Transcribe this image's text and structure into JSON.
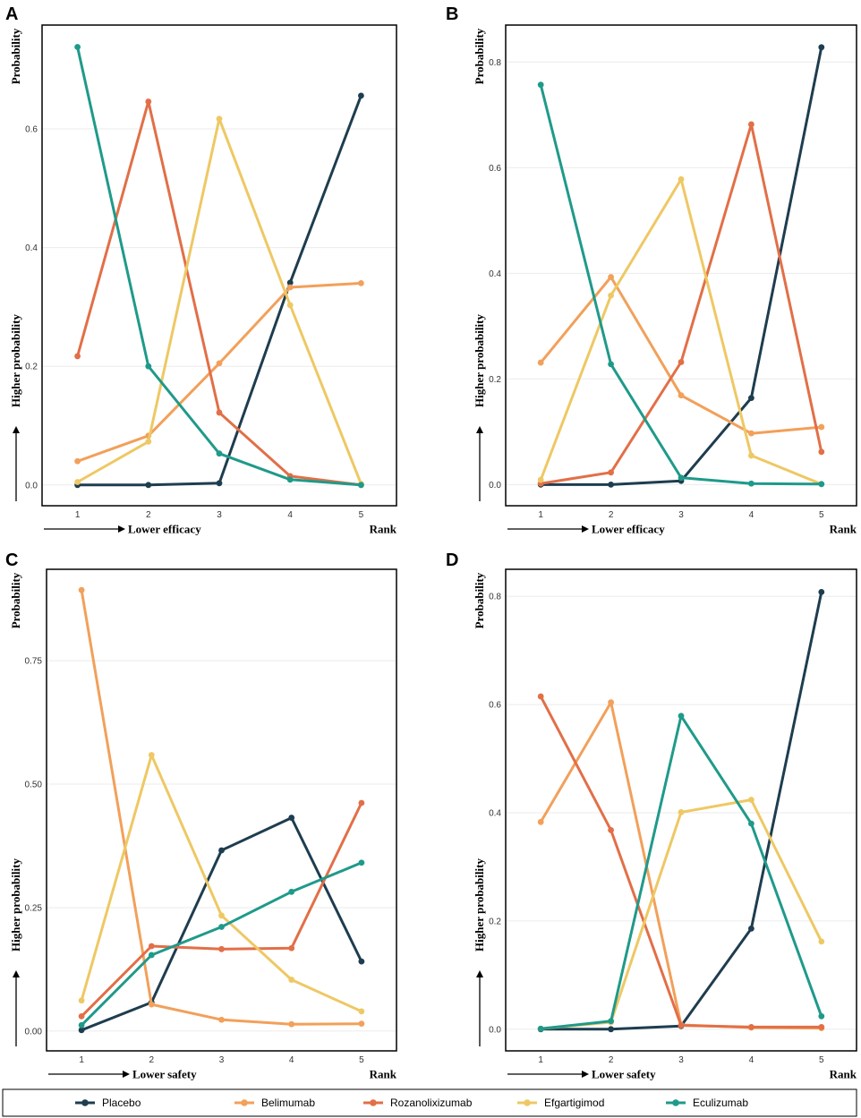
{
  "chart_data": [
    {
      "panel": "A",
      "type": "line",
      "xlabel": "Lower efficacy",
      "x_rank_label": "Rank",
      "ylabel_top": "Probability",
      "ylabel_bottom": "Higher probability",
      "x": [
        1,
        2,
        3,
        4,
        5
      ],
      "xlim": [
        0.5,
        5.5
      ],
      "ylim": [
        -0.035,
        0.775
      ],
      "yticks": [
        0.0,
        0.2,
        0.4,
        0.6
      ],
      "ytick_labels": [
        "0.0",
        "0.2",
        "0.4",
        "0.6"
      ],
      "series": [
        {
          "name": "Placebo",
          "values": [
            0.0,
            0.0,
            0.003,
            0.341,
            0.656
          ]
        },
        {
          "name": "Belimumab",
          "values": [
            0.04,
            0.083,
            0.205,
            0.333,
            0.34
          ]
        },
        {
          "name": "Rozanolixizumab",
          "values": [
            0.217,
            0.646,
            0.122,
            0.015,
            0.0
          ]
        },
        {
          "name": "Efgartigimod",
          "values": [
            0.005,
            0.073,
            0.617,
            0.303,
            0.002
          ]
        },
        {
          "name": "Eculizumab",
          "values": [
            0.738,
            0.2,
            0.053,
            0.009,
            0.0
          ]
        }
      ]
    },
    {
      "panel": "B",
      "type": "line",
      "xlabel": "Lower efficacy",
      "x_rank_label": "Rank",
      "ylabel_top": "Probability",
      "ylabel_bottom": "Higher probability",
      "x": [
        1,
        2,
        3,
        4,
        5
      ],
      "xlim": [
        0.5,
        5.5
      ],
      "ylim": [
        -0.04,
        0.87
      ],
      "yticks": [
        0.0,
        0.2,
        0.4,
        0.6,
        0.8
      ],
      "ytick_labels": [
        "0.0",
        "0.2",
        "0.4",
        "0.6",
        "0.8"
      ],
      "series": [
        {
          "name": "Placebo",
          "values": [
            0.0,
            0.0,
            0.007,
            0.164,
            0.828
          ]
        },
        {
          "name": "Belimumab",
          "values": [
            0.231,
            0.393,
            0.169,
            0.097,
            0.109
          ]
        },
        {
          "name": "Rozanolixizumab",
          "values": [
            0.002,
            0.023,
            0.232,
            0.682,
            0.062
          ]
        },
        {
          "name": "Efgartigimod",
          "values": [
            0.009,
            0.358,
            0.578,
            0.055,
            0.001
          ]
        },
        {
          "name": "Eculizumab",
          "values": [
            0.757,
            0.228,
            0.013,
            0.002,
            0.001
          ]
        }
      ]
    },
    {
      "panel": "C",
      "type": "line",
      "xlabel": "Lower safety",
      "x_rank_label": "Rank",
      "ylabel_top": "Probability",
      "ylabel_bottom": "Higher probability",
      "x": [
        1,
        2,
        3,
        4,
        5
      ],
      "xlim": [
        0.5,
        5.5
      ],
      "ylim": [
        -0.04,
        0.935
      ],
      "yticks": [
        0.0,
        0.25,
        0.5,
        0.75
      ],
      "ytick_labels": [
        "0.00",
        "0.25",
        "0.50",
        "0.75"
      ],
      "series": [
        {
          "name": "Placebo",
          "values": [
            0.002,
            0.058,
            0.366,
            0.432,
            0.141
          ]
        },
        {
          "name": "Belimumab",
          "values": [
            0.893,
            0.054,
            0.023,
            0.014,
            0.015
          ]
        },
        {
          "name": "Rozanolixizumab",
          "values": [
            0.03,
            0.172,
            0.166,
            0.168,
            0.462
          ]
        },
        {
          "name": "Efgartigimod",
          "values": [
            0.062,
            0.559,
            0.234,
            0.104,
            0.04
          ]
        },
        {
          "name": "Eculizumab",
          "values": [
            0.012,
            0.154,
            0.211,
            0.282,
            0.341
          ]
        }
      ]
    },
    {
      "panel": "D",
      "type": "line",
      "xlabel": "Lower safety",
      "x_rank_label": "Rank",
      "ylabel_top": "Probability",
      "ylabel_bottom": "Higher probability",
      "x": [
        1,
        2,
        3,
        4,
        5
      ],
      "xlim": [
        0.5,
        5.5
      ],
      "ylim": [
        -0.04,
        0.85
      ],
      "yticks": [
        0.0,
        0.2,
        0.4,
        0.6,
        0.8
      ],
      "ytick_labels": [
        "0.0",
        "0.2",
        "0.4",
        "0.6",
        "0.8"
      ],
      "series": [
        {
          "name": "Placebo",
          "values": [
            0.0,
            0.0,
            0.006,
            0.186,
            0.808
          ]
        },
        {
          "name": "Belimumab",
          "values": [
            0.383,
            0.604,
            0.008,
            0.003,
            0.002
          ]
        },
        {
          "name": "Rozanolixizumab",
          "values": [
            0.615,
            0.368,
            0.007,
            0.004,
            0.004
          ]
        },
        {
          "name": "Efgartigimod",
          "values": [
            0.001,
            0.013,
            0.401,
            0.424,
            0.162
          ]
        },
        {
          "name": "Eculizumab",
          "values": [
            0.001,
            0.015,
            0.579,
            0.38,
            0.024
          ]
        }
      ]
    }
  ],
  "legend": {
    "items": [
      {
        "label": "Placebo",
        "color": "#1e3d4f"
      },
      {
        "label": "Belimumab",
        "color": "#f2a05a"
      },
      {
        "label": "Rozanolixizumab",
        "color": "#e26f47"
      },
      {
        "label": "Efgartigimod",
        "color": "#eec864"
      },
      {
        "label": "Eculizumab",
        "color": "#1f9a8a"
      }
    ]
  }
}
